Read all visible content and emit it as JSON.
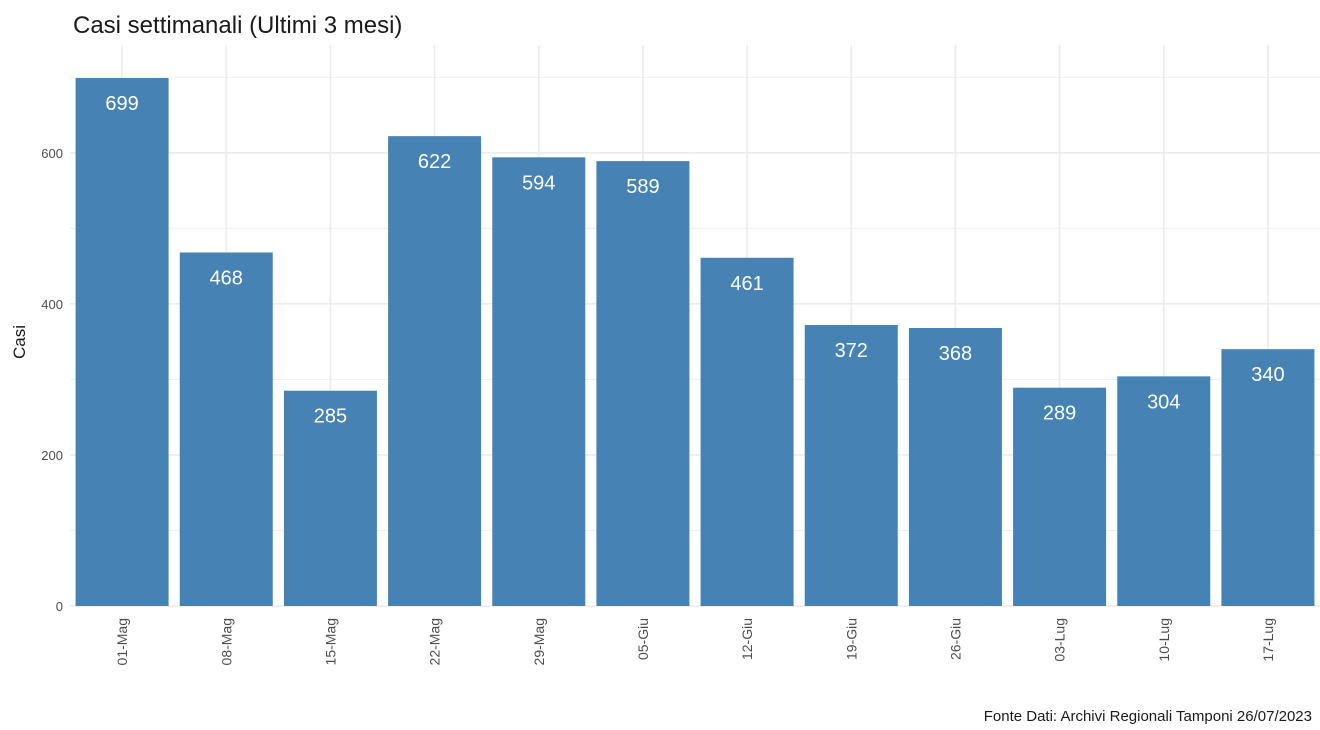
{
  "title": "Casi settimanali (Ultimi 3 mesi)",
  "caption": "Fonte Dati: Archivi Regionali Tamponi 26/07/2023",
  "colors": {
    "bar": "#4682b4",
    "grid": "#ebebeb",
    "label": "#ffffff"
  },
  "chart_data": {
    "type": "bar",
    "title": "Casi settimanali (Ultimi 3 mesi)",
    "xlabel": "",
    "ylabel": "Casi",
    "categories": [
      "01-Mag",
      "08-Mag",
      "15-Mag",
      "22-Mag",
      "29-Mag",
      "05-Giu",
      "12-Giu",
      "19-Giu",
      "26-Giu",
      "03-Lug",
      "10-Lug",
      "17-Lug"
    ],
    "values": [
      699,
      468,
      285,
      622,
      594,
      589,
      461,
      372,
      368,
      289,
      304,
      340
    ],
    "yticks": [
      0,
      200,
      400,
      600
    ],
    "ylim": [
      0,
      699
    ],
    "grid": true,
    "data_labels": true
  }
}
